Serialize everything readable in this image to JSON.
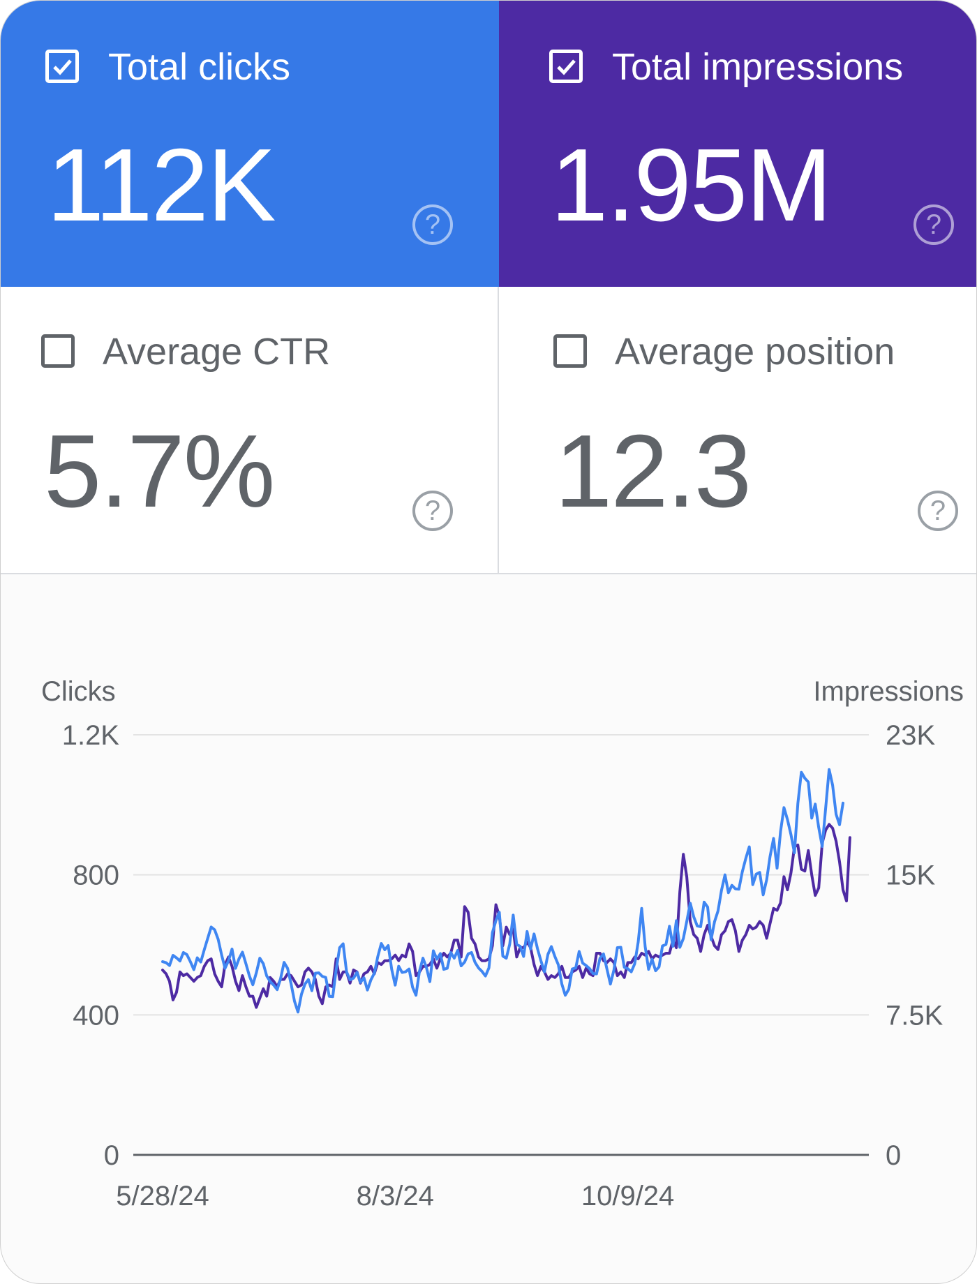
{
  "cards": {
    "clicks": {
      "label": "Total clicks",
      "value": "112K",
      "checked": true,
      "color": "#3679e7",
      "help_icon": "help-circle-icon"
    },
    "impressions": {
      "label": "Total impressions",
      "value": "1.95M",
      "checked": true,
      "color": "#4d2aa3",
      "help_icon": "help-circle-icon"
    },
    "ctr": {
      "label": "Average CTR",
      "value": "5.7%",
      "checked": false,
      "help_icon": "help-circle-icon"
    },
    "position": {
      "label": "Average position",
      "value": "12.3",
      "checked": false,
      "help_icon": "help-circle-icon"
    }
  },
  "chart_data": {
    "type": "line",
    "title": "",
    "y_left_label": "Clicks",
    "y_right_label": "Impressions",
    "y_left_ticks": [
      "0",
      "400",
      "800",
      "1.2K"
    ],
    "y_right_ticks": [
      "0",
      "7.5K",
      "15K",
      "23K"
    ],
    "ylim_left": [
      0,
      1200
    ],
    "ylim_right": [
      0,
      22500
    ],
    "x_ticks": [
      "5/28/24",
      "8/3/24",
      "10/9/24"
    ],
    "x_tick_index": [
      0,
      67,
      134
    ],
    "grid": true,
    "series": [
      {
        "name": "Clicks",
        "axis": "left",
        "color": "#3f86f2",
        "values": [
          552,
          549,
          541,
          570,
          563,
          554,
          578,
          572,
          552,
          529,
          563,
          551,
          586,
          619,
          651,
          643,
          616,
          571,
          533,
          555,
          588,
          533,
          560,
          579,
          546,
          511,
          486,
          520,
          562,
          546,
          511,
          495,
          485,
          472,
          504,
          550,
          533,
          489,
          439,
          408,
          459,
          488,
          501,
          469,
          519,
          520,
          510,
          507,
          453,
          452,
          529,
          592,
          603,
          523,
          500,
          505,
          521,
          493,
          506,
          471,
          500,
          519,
          567,
          604,
          586,
          598,
          530,
          485,
          539,
          521,
          523,
          531,
          479,
          456,
          525,
          562,
          535,
          495,
          583,
          559,
          575,
          530,
          533,
          578,
          562,
          584,
          540,
          551,
          574,
          578,
          550,
          534,
          524,
          511,
          534,
          635,
          669,
          693,
          568,
          562,
          602,
          685,
          601,
          596,
          567,
          638,
          588,
          631,
          589,
          554,
          523,
          573,
          595,
          567,
          543,
          488,
          456,
          473,
          531,
          534,
          581,
          548,
          541,
          532,
          518,
          517,
          562,
          574,
          531,
          488,
          528,
          592,
          593,
          536,
          532,
          523,
          546,
          608,
          704,
          595,
          530,
          559,
          526,
          537,
          597,
          601,
          653,
          596,
          669,
          593,
          618,
          667,
          719,
          680,
          654,
          652,
          722,
          708,
          615,
          666,
          697,
          756,
          800,
          749,
          770,
          760,
          759,
          809,
          847,
          880,
          772,
          802,
          807,
          743,
          786,
          853,
          904,
          819,
          924,
          992,
          958,
          915,
          863,
          1004,
          1093,
          1076,
          1065,
          962,
          1002,
          935,
          881,
          990,
          1101,
          1056,
          973,
          943,
          1005
        ]
      },
      {
        "name": "Impressions",
        "axis": "right",
        "color": "#4d2aa3",
        "values": [
          9900,
          9700,
          9300,
          8300,
          8700,
          9800,
          9600,
          9700,
          9500,
          9300,
          9500,
          9600,
          10100,
          10400,
          10500,
          9700,
          9300,
          9000,
          10200,
          10600,
          10100,
          9300,
          8800,
          9600,
          9000,
          8500,
          8500,
          7900,
          8400,
          8900,
          8500,
          9500,
          9300,
          9000,
          9400,
          9400,
          9700,
          9600,
          9300,
          9000,
          9100,
          9800,
          10000,
          9800,
          9400,
          8500,
          8100,
          9000,
          9100,
          9000,
          10500,
          9400,
          9800,
          9800,
          9200,
          9900,
          9800,
          9200,
          9700,
          9800,
          10100,
          9700,
          10300,
          10200,
          10400,
          10400,
          10500,
          10700,
          10400,
          10700,
          10600,
          11300,
          10900,
          9600,
          9800,
          10100,
          10100,
          10200,
          10500,
          10000,
          10500,
          10800,
          10600,
          10800,
          11500,
          11500,
          10600,
          13300,
          13000,
          11600,
          11300,
          10600,
          10400,
          10400,
          10500,
          11200,
          13400,
          12800,
          11200,
          12200,
          11800,
          12100,
          10600,
          11100,
          11100,
          11400,
          11100,
          10200,
          9600,
          10100,
          9800,
          9400,
          9600,
          9500,
          9700,
          10100,
          9500,
          9500,
          9800,
          9900,
          10100,
          9500,
          10000,
          9700,
          9600,
          10800,
          10800,
          10400,
          10300,
          10500,
          10300,
          9600,
          9800,
          9500,
          10300,
          10300,
          10600,
          10500,
          10800,
          10700,
          10900,
          10500,
          10700,
          10600,
          10700,
          10800,
          10800,
          11500,
          11100,
          14100,
          16100,
          14900,
          12500,
          11800,
          11600,
          10900,
          11800,
          12300,
          11700,
          11200,
          11000,
          11800,
          12000,
          12500,
          12600,
          12000,
          10900,
          11500,
          11800,
          12300,
          12100,
          12200,
          12500,
          12300,
          11600,
          12400,
          13200,
          13100,
          13500,
          14900,
          14200,
          15100,
          16500,
          16600,
          15300,
          15200,
          16300,
          15000,
          13900,
          14300,
          16700,
          17400,
          17700,
          17500,
          16800,
          15700,
          14200,
          13600,
          17000
        ]
      }
    ]
  }
}
